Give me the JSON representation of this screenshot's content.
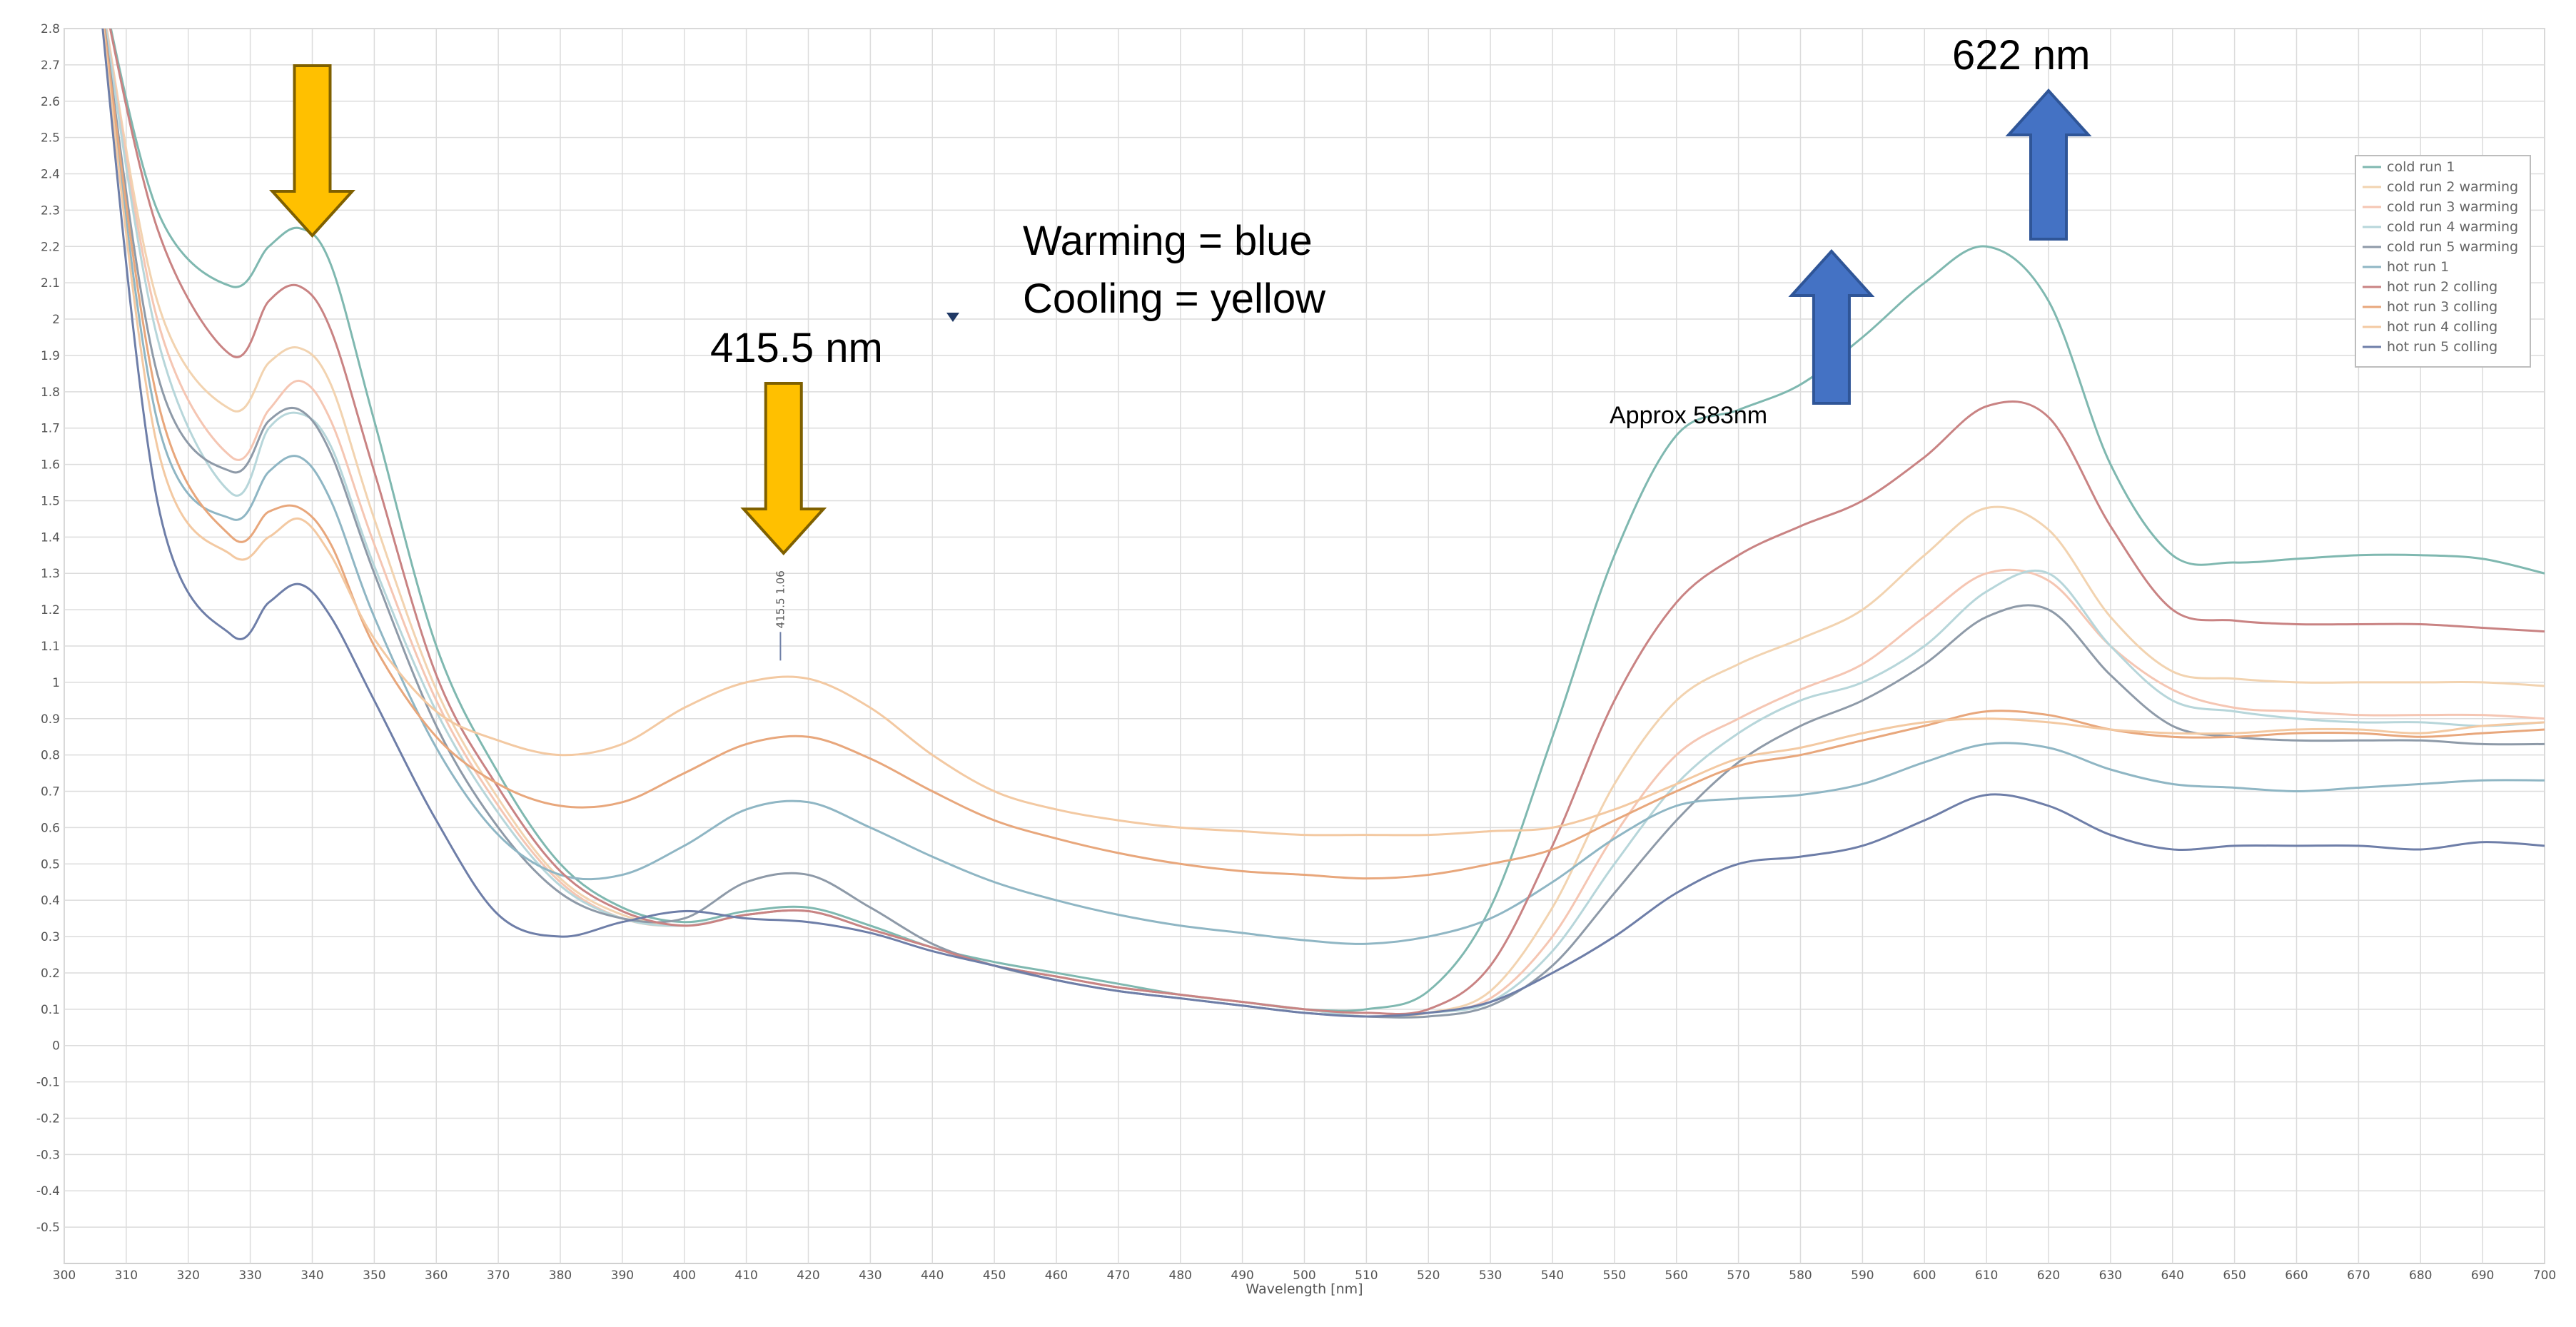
{
  "chart_data": {
    "type": "line",
    "xlabel": "Wavelength [nm]",
    "ylabel": "",
    "xlim": [
      300,
      700
    ],
    "ylim": [
      -0.6,
      2.8
    ],
    "xticks": [
      300,
      310,
      320,
      330,
      340,
      350,
      360,
      370,
      380,
      390,
      400,
      410,
      420,
      430,
      440,
      450,
      460,
      470,
      480,
      490,
      500,
      510,
      520,
      530,
      540,
      550,
      560,
      570,
      580,
      590,
      600,
      610,
      620,
      630,
      640,
      650,
      660,
      670,
      680,
      690,
      700
    ],
    "yticks": [
      -0.5,
      -0.4,
      -0.3,
      -0.2,
      -0.1,
      0,
      0.1,
      0.2,
      0.3,
      0.4,
      0.5,
      0.6,
      0.7,
      0.8,
      0.9,
      1,
      1.1,
      1.2,
      1.3,
      1.4,
      1.5,
      1.6,
      1.7,
      1.8,
      1.9,
      2,
      2.1,
      2.2,
      2.3,
      2.4,
      2.5,
      2.6,
      2.7,
      2.8
    ],
    "grid": true,
    "legend_position": "top-right",
    "series": [
      {
        "name": "cold run 1",
        "color": "#7fb8b0",
        "x": [
          305,
          315,
          327,
          333,
          338,
          343,
          350,
          360,
          370,
          380,
          390,
          400,
          410,
          420,
          430,
          440,
          450,
          460,
          470,
          480,
          490,
          500,
          510,
          520,
          530,
          540,
          550,
          560,
          570,
          580,
          590,
          600,
          610,
          620,
          630,
          640,
          650,
          660,
          670,
          680,
          690,
          700
        ],
        "y": [
          3.0,
          2.3,
          2.09,
          2.2,
          2.25,
          2.15,
          1.72,
          1.1,
          0.75,
          0.5,
          0.38,
          0.34,
          0.37,
          0.38,
          0.33,
          0.27,
          0.23,
          0.2,
          0.17,
          0.14,
          0.12,
          0.1,
          0.1,
          0.15,
          0.38,
          0.85,
          1.35,
          1.68,
          1.75,
          1.82,
          1.95,
          2.1,
          2.2,
          2.05,
          1.6,
          1.35,
          1.33,
          1.34,
          1.35,
          1.35,
          1.34,
          1.3
        ]
      },
      {
        "name": "cold run 2 warming",
        "color": "#f2d3b0",
        "x": [
          305,
          315,
          327,
          333,
          338,
          343,
          350,
          360,
          370,
          380,
          390,
          400,
          410,
          420,
          430,
          440,
          450,
          460,
          470,
          480,
          490,
          500,
          510,
          520,
          530,
          540,
          550,
          560,
          570,
          580,
          590,
          600,
          610,
          620,
          630,
          640,
          650,
          660,
          670,
          680,
          690,
          700
        ],
        "y": [
          3.0,
          2.05,
          1.75,
          1.88,
          1.92,
          1.82,
          1.45,
          0.98,
          0.68,
          0.46,
          0.36,
          0.33,
          0.36,
          0.37,
          0.32,
          0.27,
          0.22,
          0.19,
          0.16,
          0.14,
          0.12,
          0.1,
          0.08,
          0.09,
          0.15,
          0.38,
          0.72,
          0.95,
          1.05,
          1.12,
          1.2,
          1.35,
          1.48,
          1.42,
          1.18,
          1.03,
          1.01,
          1.0,
          1.0,
          1.0,
          1.0,
          0.99
        ]
      },
      {
        "name": "cold run 3 warming",
        "color": "#f5c6b3",
        "x": [
          305,
          315,
          327,
          333,
          338,
          343,
          350,
          360,
          370,
          380,
          390,
          400,
          410,
          420,
          430,
          440,
          450,
          460,
          470,
          480,
          490,
          500,
          510,
          520,
          530,
          540,
          550,
          560,
          570,
          580,
          590,
          600,
          610,
          620,
          630,
          640,
          650,
          660,
          670,
          680,
          690,
          700
        ],
        "y": [
          3.0,
          2.0,
          1.62,
          1.75,
          1.83,
          1.72,
          1.38,
          0.95,
          0.66,
          0.45,
          0.35,
          0.33,
          0.36,
          0.37,
          0.32,
          0.27,
          0.22,
          0.19,
          0.16,
          0.14,
          0.12,
          0.1,
          0.08,
          0.09,
          0.13,
          0.3,
          0.58,
          0.8,
          0.9,
          0.98,
          1.05,
          1.18,
          1.3,
          1.28,
          1.1,
          0.98,
          0.93,
          0.92,
          0.91,
          0.91,
          0.91,
          0.9
        ]
      },
      {
        "name": "cold run 4 warming",
        "color": "#b7d6da",
        "x": [
          305,
          315,
          327,
          333,
          338,
          343,
          350,
          360,
          370,
          380,
          390,
          400,
          410,
          420,
          430,
          440,
          450,
          460,
          470,
          480,
          490,
          500,
          510,
          520,
          530,
          540,
          550,
          560,
          570,
          580,
          590,
          600,
          610,
          620,
          630,
          640,
          650,
          660,
          670,
          680,
          690,
          700
        ],
        "y": [
          3.0,
          1.95,
          1.52,
          1.7,
          1.74,
          1.65,
          1.32,
          0.92,
          0.64,
          0.44,
          0.35,
          0.33,
          0.36,
          0.37,
          0.32,
          0.27,
          0.22,
          0.19,
          0.16,
          0.14,
          0.12,
          0.1,
          0.08,
          0.09,
          0.12,
          0.26,
          0.5,
          0.72,
          0.86,
          0.95,
          1.0,
          1.1,
          1.25,
          1.3,
          1.1,
          0.95,
          0.92,
          0.9,
          0.89,
          0.89,
          0.88,
          0.89
        ]
      },
      {
        "name": "cold run 5 warming",
        "color": "#8e9aa8",
        "x": [
          305,
          315,
          327,
          333,
          338,
          343,
          350,
          360,
          370,
          380,
          390,
          400,
          410,
          420,
          430,
          440,
          450,
          460,
          470,
          480,
          490,
          500,
          510,
          520,
          530,
          540,
          550,
          560,
          570,
          580,
          590,
          600,
          610,
          620,
          630,
          640,
          650,
          660,
          670,
          680,
          690,
          700
        ],
        "y": [
          3.0,
          1.85,
          1.58,
          1.72,
          1.75,
          1.63,
          1.3,
          0.88,
          0.6,
          0.42,
          0.35,
          0.35,
          0.45,
          0.47,
          0.38,
          0.28,
          0.22,
          0.18,
          0.15,
          0.13,
          0.11,
          0.09,
          0.08,
          0.08,
          0.11,
          0.22,
          0.42,
          0.62,
          0.78,
          0.88,
          0.95,
          1.05,
          1.18,
          1.2,
          1.02,
          0.88,
          0.85,
          0.84,
          0.84,
          0.84,
          0.83,
          0.83
        ]
      },
      {
        "name": "hot run 1",
        "color": "#8fb6c4",
        "x": [
          305,
          315,
          327,
          333,
          338,
          343,
          350,
          360,
          370,
          380,
          390,
          400,
          410,
          420,
          430,
          440,
          450,
          460,
          470,
          480,
          490,
          500,
          510,
          520,
          530,
          540,
          550,
          560,
          570,
          580,
          590,
          600,
          610,
          620,
          630,
          640,
          650,
          660,
          670,
          680,
          690,
          700
        ],
        "y": [
          3.0,
          1.72,
          1.45,
          1.58,
          1.62,
          1.5,
          1.18,
          0.82,
          0.58,
          0.47,
          0.47,
          0.55,
          0.65,
          0.67,
          0.6,
          0.52,
          0.45,
          0.4,
          0.36,
          0.33,
          0.31,
          0.29,
          0.28,
          0.3,
          0.35,
          0.45,
          0.57,
          0.66,
          0.68,
          0.69,
          0.72,
          0.78,
          0.83,
          0.82,
          0.76,
          0.72,
          0.71,
          0.7,
          0.71,
          0.72,
          0.73,
          0.73
        ]
      },
      {
        "name": "hot run 2 colling",
        "color": "#c98383",
        "x": [
          305,
          315,
          327,
          333,
          338,
          343,
          350,
          360,
          370,
          380,
          390,
          400,
          410,
          420,
          430,
          440,
          450,
          460,
          470,
          480,
          490,
          500,
          510,
          520,
          530,
          540,
          550,
          560,
          570,
          580,
          590,
          600,
          610,
          620,
          630,
          640,
          650,
          660,
          670,
          680,
          690,
          700
        ],
        "y": [
          3.0,
          2.25,
          1.9,
          2.05,
          2.09,
          1.97,
          1.58,
          1.02,
          0.71,
          0.48,
          0.37,
          0.33,
          0.36,
          0.37,
          0.32,
          0.27,
          0.22,
          0.19,
          0.16,
          0.14,
          0.12,
          0.1,
          0.09,
          0.1,
          0.22,
          0.55,
          0.95,
          1.22,
          1.35,
          1.43,
          1.5,
          1.62,
          1.76,
          1.73,
          1.43,
          1.2,
          1.17,
          1.16,
          1.16,
          1.16,
          1.15,
          1.14
        ]
      },
      {
        "name": "hot run 3 colling",
        "color": "#e8a77c",
        "x": [
          305,
          315,
          327,
          333,
          338,
          343,
          350,
          360,
          370,
          380,
          390,
          400,
          410,
          420,
          430,
          440,
          450,
          460,
          470,
          480,
          490,
          500,
          510,
          520,
          530,
          540,
          550,
          560,
          570,
          580,
          590,
          600,
          610,
          620,
          630,
          640,
          650,
          660,
          670,
          680,
          690,
          700
        ],
        "y": [
          3.0,
          1.78,
          1.4,
          1.47,
          1.48,
          1.38,
          1.1,
          0.85,
          0.72,
          0.66,
          0.67,
          0.75,
          0.83,
          0.85,
          0.79,
          0.7,
          0.62,
          0.57,
          0.53,
          0.5,
          0.48,
          0.47,
          0.46,
          0.47,
          0.5,
          0.54,
          0.62,
          0.7,
          0.77,
          0.8,
          0.84,
          0.88,
          0.92,
          0.91,
          0.87,
          0.85,
          0.85,
          0.86,
          0.86,
          0.85,
          0.86,
          0.87
        ]
      },
      {
        "name": "hot run 4 colling",
        "color": "#f3c9a2",
        "x": [
          305,
          315,
          327,
          333,
          338,
          343,
          350,
          360,
          370,
          380,
          390,
          400,
          410,
          420,
          430,
          440,
          450,
          460,
          470,
          480,
          490,
          500,
          510,
          520,
          530,
          540,
          550,
          560,
          570,
          580,
          590,
          600,
          610,
          620,
          630,
          640,
          650,
          660,
          670,
          680,
          690,
          700
        ],
        "y": [
          3.0,
          1.65,
          1.35,
          1.4,
          1.45,
          1.35,
          1.12,
          0.92,
          0.84,
          0.8,
          0.83,
          0.93,
          1.0,
          1.01,
          0.93,
          0.8,
          0.7,
          0.65,
          0.62,
          0.6,
          0.59,
          0.58,
          0.58,
          0.58,
          0.59,
          0.6,
          0.65,
          0.72,
          0.79,
          0.82,
          0.86,
          0.89,
          0.9,
          0.89,
          0.87,
          0.86,
          0.86,
          0.87,
          0.87,
          0.86,
          0.88,
          0.89
        ]
      },
      {
        "name": "hot run 5 colling",
        "color": "#6e7ea8",
        "x": [
          305,
          315,
          327,
          333,
          338,
          343,
          350,
          360,
          370,
          380,
          390,
          400,
          410,
          420,
          430,
          440,
          450,
          460,
          470,
          480,
          490,
          500,
          510,
          520,
          530,
          540,
          550,
          560,
          570,
          580,
          590,
          600,
          610,
          620,
          630,
          640,
          650,
          660,
          670,
          680,
          690,
          700
        ],
        "y": [
          3.0,
          1.5,
          1.13,
          1.22,
          1.27,
          1.18,
          0.95,
          0.62,
          0.36,
          0.3,
          0.34,
          0.37,
          0.35,
          0.34,
          0.31,
          0.26,
          0.22,
          0.18,
          0.15,
          0.13,
          0.11,
          0.09,
          0.08,
          0.09,
          0.12,
          0.2,
          0.3,
          0.42,
          0.5,
          0.52,
          0.55,
          0.62,
          0.69,
          0.66,
          0.58,
          0.54,
          0.55,
          0.55,
          0.55,
          0.54,
          0.56,
          0.55
        ]
      }
    ],
    "annotations": {
      "arrows": [
        {
          "x": 340,
          "direction": "down",
          "color": "#ffc000",
          "note": ""
        },
        {
          "x": 416,
          "direction": "down",
          "color": "#ffc000",
          "note": ""
        },
        {
          "x": 585,
          "direction": "up",
          "color": "#4472c4",
          "note": ""
        },
        {
          "x": 620,
          "direction": "up",
          "color": "#4472c4",
          "note": ""
        }
      ],
      "label_415": "415.5 nm",
      "label_622": "622 nm",
      "label_583": "Approx 583nm",
      "warming_text": "Warming = blue",
      "cooling_text": "Cooling = yellow",
      "peak_marker_text": "415.5  1.06"
    }
  }
}
